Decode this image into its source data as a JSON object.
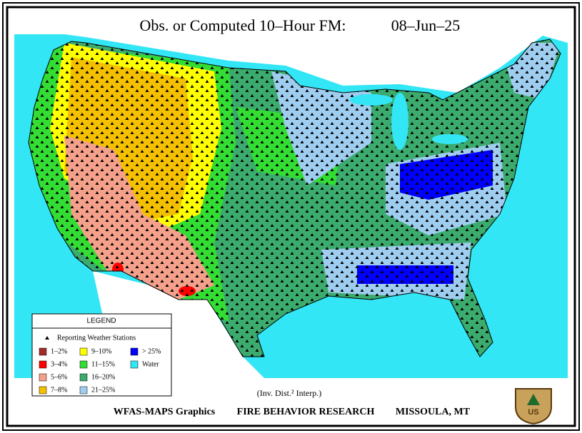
{
  "header": {
    "title": "Obs. or Computed 10–Hour FM:",
    "date": "08–Jun–25"
  },
  "legend": {
    "title": "LEGEND",
    "stations": "Reporting Weather Stations",
    "items": [
      {
        "label": "1–2%",
        "color": "#a52a2a"
      },
      {
        "label": "3–4%",
        "color": "#ff0000"
      },
      {
        "label": "5–6%",
        "color": "#f4a08a"
      },
      {
        "label": "7–8%",
        "color": "#f5c000"
      },
      {
        "label": "9–10%",
        "color": "#ffff00"
      },
      {
        "label": "11–15%",
        "color": "#33dd33"
      },
      {
        "label": "16–20%",
        "color": "#3cab6e"
      },
      {
        "label": "21–25%",
        "color": "#9ecdf0"
      },
      {
        "label": "> 25%",
        "color": "#0000ff"
      },
      {
        "label": "Water",
        "color": "#33e6f5"
      }
    ]
  },
  "footer": {
    "note": "(Inv. Dist.² Interp.)",
    "credit": "WFAS-MAPS Graphics",
    "org": "FIRE BEHAVIOR RESEARCH",
    "location": "MISSOULA, MT"
  },
  "badge": {
    "text": "US"
  }
}
